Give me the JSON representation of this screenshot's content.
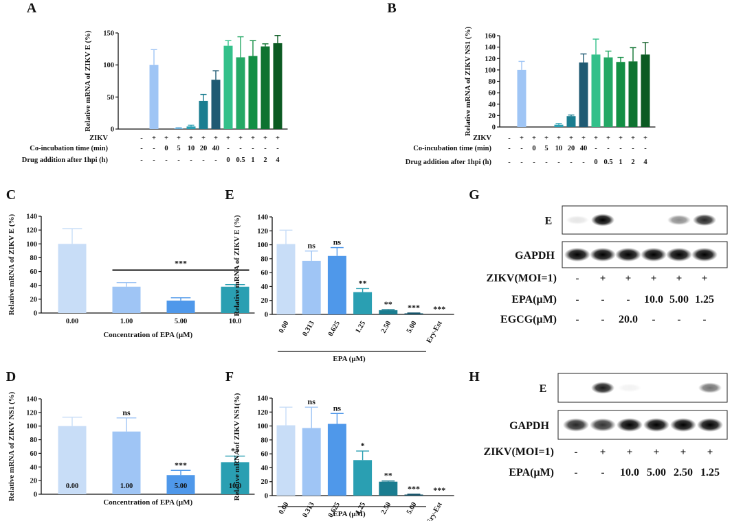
{
  "chart_data": [
    {
      "panel": "A",
      "type": "bar",
      "ylabel": "Relative mRNA of ZIKV E (%)",
      "ylim": [
        0,
        150
      ],
      "yticks": [
        0,
        50,
        100,
        150
      ],
      "values": [
        0,
        100,
        0,
        1,
        4,
        44,
        77,
        130,
        112,
        114,
        129,
        134
      ],
      "errors": [
        0,
        24,
        0,
        1,
        2,
        10,
        14,
        8,
        32,
        24,
        4,
        12
      ],
      "colors": [
        "#9fc5f5",
        "#9fc5f5",
        "#9fc5f5",
        "#5fa8d6",
        "#2a9fb2",
        "#1a7d90",
        "#1f5a73",
        "#33c08a",
        "#24a865",
        "#138f44",
        "#0e7330",
        "#0b5a22"
      ],
      "rows": [
        {
          "label": "ZIKV",
          "cells": [
            "-",
            "+",
            "+",
            "+",
            "+",
            "+",
            "+",
            "+",
            "+",
            "+",
            "+",
            "+"
          ]
        },
        {
          "label": "Co-incubation time (min)",
          "cells": [
            "-",
            "-",
            "0",
            "5",
            "10",
            "20",
            "40",
            "-",
            "-",
            "-",
            "-",
            "-"
          ]
        },
        {
          "label": "Drug addition after 1hpi (h)",
          "cells": [
            "-",
            "-",
            "-",
            "-",
            "-",
            "-",
            "-",
            "0",
            "0.5",
            "1",
            "2",
            "4"
          ]
        }
      ]
    },
    {
      "panel": "B",
      "type": "bar",
      "ylabel": "Relative mRNA of ZIKV NS1 (%)",
      "ylim": [
        0,
        160
      ],
      "yticks": [
        0,
        20,
        40,
        60,
        80,
        100,
        120,
        140,
        160
      ],
      "values": [
        0,
        100,
        0,
        0,
        4,
        19,
        113,
        127,
        122,
        114,
        115,
        127
      ],
      "errors": [
        0,
        15,
        0,
        0,
        2,
        2,
        15,
        27,
        11,
        8,
        24,
        21
      ],
      "colors": [
        "#9fc5f5",
        "#9fc5f5",
        "#9fc5f5",
        "#5fa8d6",
        "#2a9fb2",
        "#1a7d90",
        "#1f5a73",
        "#33c08a",
        "#24a865",
        "#138f44",
        "#0e7330",
        "#0b5a22"
      ],
      "rows": [
        {
          "label": "ZIKV",
          "cells": [
            "-",
            "+",
            "+",
            "+",
            "+",
            "+",
            "+",
            "+",
            "+",
            "+",
            "+",
            "+"
          ]
        },
        {
          "label": "Co-incubation time (min)",
          "cells": [
            "-",
            "-",
            "0",
            "5",
            "10",
            "20",
            "40",
            "-",
            "-",
            "-",
            "-",
            "-"
          ]
        },
        {
          "label": "Drug addition after 1hpi (h)",
          "cells": [
            "-",
            "-",
            "-",
            "-",
            "-",
            "-",
            "-",
            "0",
            "0.5",
            "1",
            "2",
            "4"
          ]
        }
      ]
    },
    {
      "panel": "C",
      "type": "bar",
      "ylabel": "Relative mRNA of ZIKV E (%)",
      "xlabel": "Concentration of EPA (μM)",
      "ylim": [
        0,
        140
      ],
      "yticks": [
        0,
        20,
        40,
        60,
        80,
        100,
        120,
        140
      ],
      "categories": [
        "0.00",
        "1.00",
        "5.00",
        "10.0"
      ],
      "values": [
        100,
        38,
        18,
        38
      ],
      "errors": [
        22,
        6,
        4,
        3
      ],
      "colors": [
        "#c8ddf7",
        "#9fc5f5",
        "#4f98ea",
        "#2a9fb2"
      ],
      "bracket": {
        "from": 1,
        "to": 3,
        "label": "***",
        "y": 62
      }
    },
    {
      "panel": "D",
      "type": "bar",
      "ylabel": "Relative mRNA of  ZIKV NS1 (%)",
      "xlabel": "Concentration of EPA (μM)",
      "ylim": [
        0,
        140
      ],
      "yticks": [
        0,
        20,
        40,
        60,
        80,
        100,
        120,
        140
      ],
      "categories": [
        "0.00",
        "1.00",
        "5.00",
        "10.0"
      ],
      "values": [
        100,
        92,
        28,
        47
      ],
      "errors": [
        13,
        20,
        7,
        9
      ],
      "colors": [
        "#c8ddf7",
        "#9fc5f5",
        "#4f98ea",
        "#2a9fb2"
      ],
      "sig": [
        "",
        "ns",
        "***",
        "**"
      ]
    },
    {
      "panel": "E",
      "type": "bar",
      "ylabel": "Relative mRNA of ZIKV E (%)",
      "xlabel": "EPA (μM)",
      "ylim": [
        0,
        140
      ],
      "yticks": [
        0,
        20,
        40,
        60,
        80,
        100,
        120,
        140
      ],
      "categories": [
        "0.00",
        "0.313",
        "0.625",
        "1.25",
        "2.50",
        "5.00",
        "Ery-Est"
      ],
      "values": [
        101,
        77,
        84,
        32,
        6,
        1.5,
        0
      ],
      "errors": [
        20,
        14,
        12,
        5,
        1,
        0.5,
        0
      ],
      "colors": [
        "#c8ddf7",
        "#9fc5f5",
        "#4f98ea",
        "#2a9fb2",
        "#1a7d90",
        "#16546a",
        "#16546a"
      ],
      "sig": [
        "",
        "ns",
        "ns",
        "**",
        "**",
        "***",
        "***"
      ]
    },
    {
      "panel": "F",
      "type": "bar",
      "ylabel": "Relative mRNA of  ZIKV NS1(%)",
      "xlabel": "EPA (μM)",
      "ylim": [
        0,
        140
      ],
      "yticks": [
        0,
        20,
        40,
        60,
        80,
        100,
        120,
        140
      ],
      "categories": [
        "0.00",
        "0.313",
        "0.625",
        "1.25",
        "2.50",
        "5.00",
        "Ery-Est"
      ],
      "values": [
        101,
        97,
        103,
        51,
        20,
        1.5,
        0
      ],
      "errors": [
        26,
        30,
        15,
        13,
        1,
        0.5,
        0
      ],
      "colors": [
        "#c8ddf7",
        "#9fc5f5",
        "#4f98ea",
        "#2a9fb2",
        "#1a7d90",
        "#16546a",
        "#16546a"
      ],
      "sig": [
        "",
        "ns",
        "ns",
        "*",
        "**",
        "***",
        "***"
      ]
    }
  ],
  "blots": {
    "G": {
      "panel": "G",
      "band_labels": [
        "E",
        "GAPDH"
      ],
      "e_intensity": [
        0.1,
        1.0,
        0,
        0,
        0.45,
        0.85
      ],
      "gapdh_intensity": [
        1,
        1,
        1,
        1,
        1,
        1
      ],
      "rows": [
        {
          "label": "ZIKV(MOI=1)",
          "cells": [
            "-",
            "+",
            "+",
            "+",
            "+",
            "+"
          ]
        },
        {
          "label": "EPA(μM)",
          "cells": [
            "-",
            "-",
            "-",
            "10.0",
            "5.00",
            "1.25"
          ]
        },
        {
          "label": "EGCG(μM)",
          "cells": [
            "-",
            "-",
            "20.0",
            "-",
            "-",
            "-"
          ]
        }
      ]
    },
    "H": {
      "panel": "H",
      "band_labels": [
        "E",
        "GAPDH"
      ],
      "e_intensity": [
        0,
        0.9,
        0.05,
        0,
        0,
        0.55
      ],
      "gapdh_intensity": [
        0.85,
        0.8,
        1,
        1,
        1,
        1
      ],
      "rows": [
        {
          "label": "ZIKV(MOI=1)",
          "cells": [
            "-",
            "+",
            "+",
            "+",
            "+",
            "+"
          ]
        },
        {
          "label": "EPA(μM)",
          "cells": [
            "-",
            "-",
            "10.0",
            "5.00",
            "2.50",
            "1.25"
          ]
        }
      ]
    }
  }
}
